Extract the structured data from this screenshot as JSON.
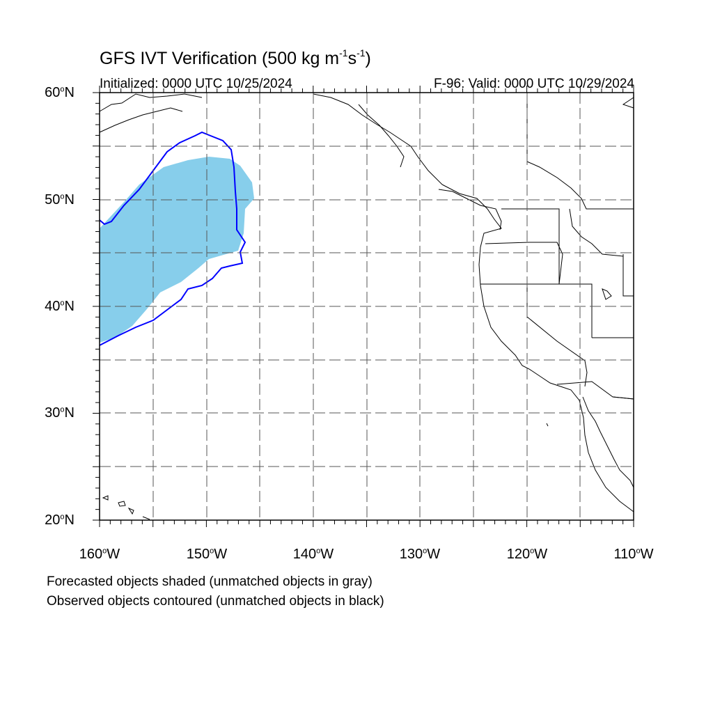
{
  "title": {
    "main": "GFS IVT Verification (500 kg m",
    "sup1": "-1",
    "mid": "s",
    "sup2": "-1",
    "end": ")"
  },
  "initialized": "Initialized: 0000 UTC 10/25/2024",
  "valid": "F-96: Valid: 0000 UTC 10/29/2024",
  "notes": [
    "Forecasted objects shaded (unmatched objects in gray)",
    "Observed objects contoured (unmatched objects in black)"
  ],
  "axes": {
    "lat_labels": [
      "60",
      "50",
      "40",
      "30",
      "20"
    ],
    "lat_suffix": "N",
    "lon_labels": [
      "160",
      "150",
      "140",
      "130",
      "120",
      "110"
    ],
    "lon_suffix": "W",
    "degree_symbol": "o"
  },
  "colors": {
    "forecast_fill": "#87ceeb",
    "observed_contour": "#0000ff",
    "coastline": "#000000",
    "grid": "#555555"
  }
}
